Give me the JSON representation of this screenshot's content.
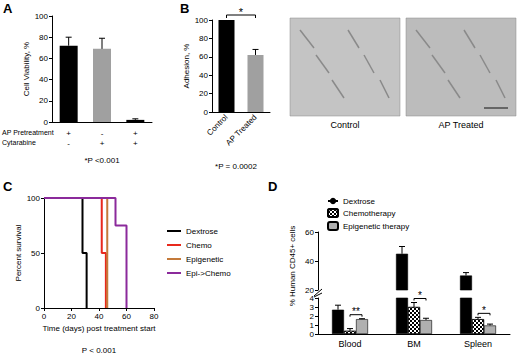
{
  "chart_data": [
    {
      "panel": "A",
      "type": "bar",
      "ylabel": "Cell Viability, %",
      "categories": [
        null,
        null,
        null
      ],
      "values": [
        72,
        69,
        2
      ],
      "errors": [
        8,
        10,
        1
      ],
      "colors": [
        "#000000",
        "#a0a0a0",
        "#000000"
      ],
      "ylim": [
        0,
        100
      ],
      "yticks": [
        0,
        20,
        40,
        60,
        80,
        100
      ],
      "condition_rows": [
        {
          "label": "AP Pretreatment",
          "marks": [
            "+",
            "-",
            "+"
          ]
        },
        {
          "label": "Cytarabine",
          "marks": [
            "-",
            "+",
            "+"
          ]
        }
      ],
      "footnote": "*P <0.001"
    },
    {
      "panel": "B",
      "type": "bar",
      "ylabel": "Adhesion, %",
      "categories": [
        "Control",
        "AP Treated"
      ],
      "values": [
        100,
        62
      ],
      "errors": [
        0,
        6
      ],
      "colors": [
        "#000000",
        "#a0a0a0"
      ],
      "ylim": [
        0,
        100
      ],
      "yticks": [
        0,
        20,
        40,
        60,
        80,
        100
      ],
      "annotations": [
        {
          "text": "*",
          "between": [
            "Control",
            "AP Treated"
          ]
        }
      ],
      "footnote": "*P = 0.0002",
      "image_labels": [
        "Control",
        "AP Treated"
      ]
    },
    {
      "panel": "C",
      "type": "line",
      "line_style": "step",
      "xlabel": "Time (days) post treatment start",
      "ylabel": "Percent survival",
      "xlim": [
        0,
        80
      ],
      "xticks": [
        0,
        20,
        40,
        60,
        80
      ],
      "ylim": [
        0,
        100
      ],
      "yticks": [
        0,
        50,
        100
      ],
      "series": [
        {
          "name": "Dextrose",
          "color": "#000000",
          "x": [
            0,
            28,
            31
          ],
          "values": [
            100,
            50,
            0
          ]
        },
        {
          "name": "Chemo",
          "color": "#e8291c",
          "x": [
            0,
            42,
            45
          ],
          "values": [
            100,
            50,
            0
          ]
        },
        {
          "name": "Epigenetic",
          "color": "#c47a3a",
          "x": [
            0,
            46
          ],
          "values": [
            100,
            0
          ]
        },
        {
          "name": "Epi->Chemo",
          "color": "#8b2a9b",
          "x": [
            0,
            52,
            60
          ],
          "values": [
            100,
            75,
            0
          ]
        }
      ],
      "legend": "right",
      "footnote": "P < 0.001"
    },
    {
      "panel": "D",
      "type": "bar",
      "ylabel": "% Human CD45+ cells",
      "categories": [
        "Blood",
        "BM",
        "Spleen"
      ],
      "series": [
        {
          "name": "Dextrose",
          "color": "#000000",
          "values": [
            2.7,
            45,
            30
          ],
          "errors": [
            0.5,
            5,
            2
          ]
        },
        {
          "name": "Chemotherapy",
          "color": "#ffffff",
          "marker": "checkered",
          "values": [
            0.35,
            3.0,
            1.65
          ],
          "errors": [
            0.25,
            0.5,
            0.2
          ]
        },
        {
          "name": "Epigenetic therapy",
          "color": "#b0b0b0",
          "values": [
            1.65,
            1.55,
            0.95
          ],
          "errors": [
            0.05,
            0.2,
            0.15
          ]
        }
      ],
      "ylim": [
        0,
        60
      ],
      "y_break": [
        4,
        20
      ],
      "yticks": [
        0,
        1,
        2,
        3,
        4,
        20,
        40,
        60
      ],
      "legend": "upper left",
      "annotations": [
        {
          "category": "Blood",
          "text": "**",
          "between": [
            "Chemotherapy",
            "Epigenetic therapy"
          ]
        },
        {
          "category": "BM",
          "text": "*",
          "between": [
            "Chemotherapy",
            "Epigenetic therapy"
          ]
        },
        {
          "category": "Spleen",
          "text": "*",
          "between": [
            "Chemotherapy",
            "Epigenetic therapy"
          ]
        }
      ]
    }
  ]
}
